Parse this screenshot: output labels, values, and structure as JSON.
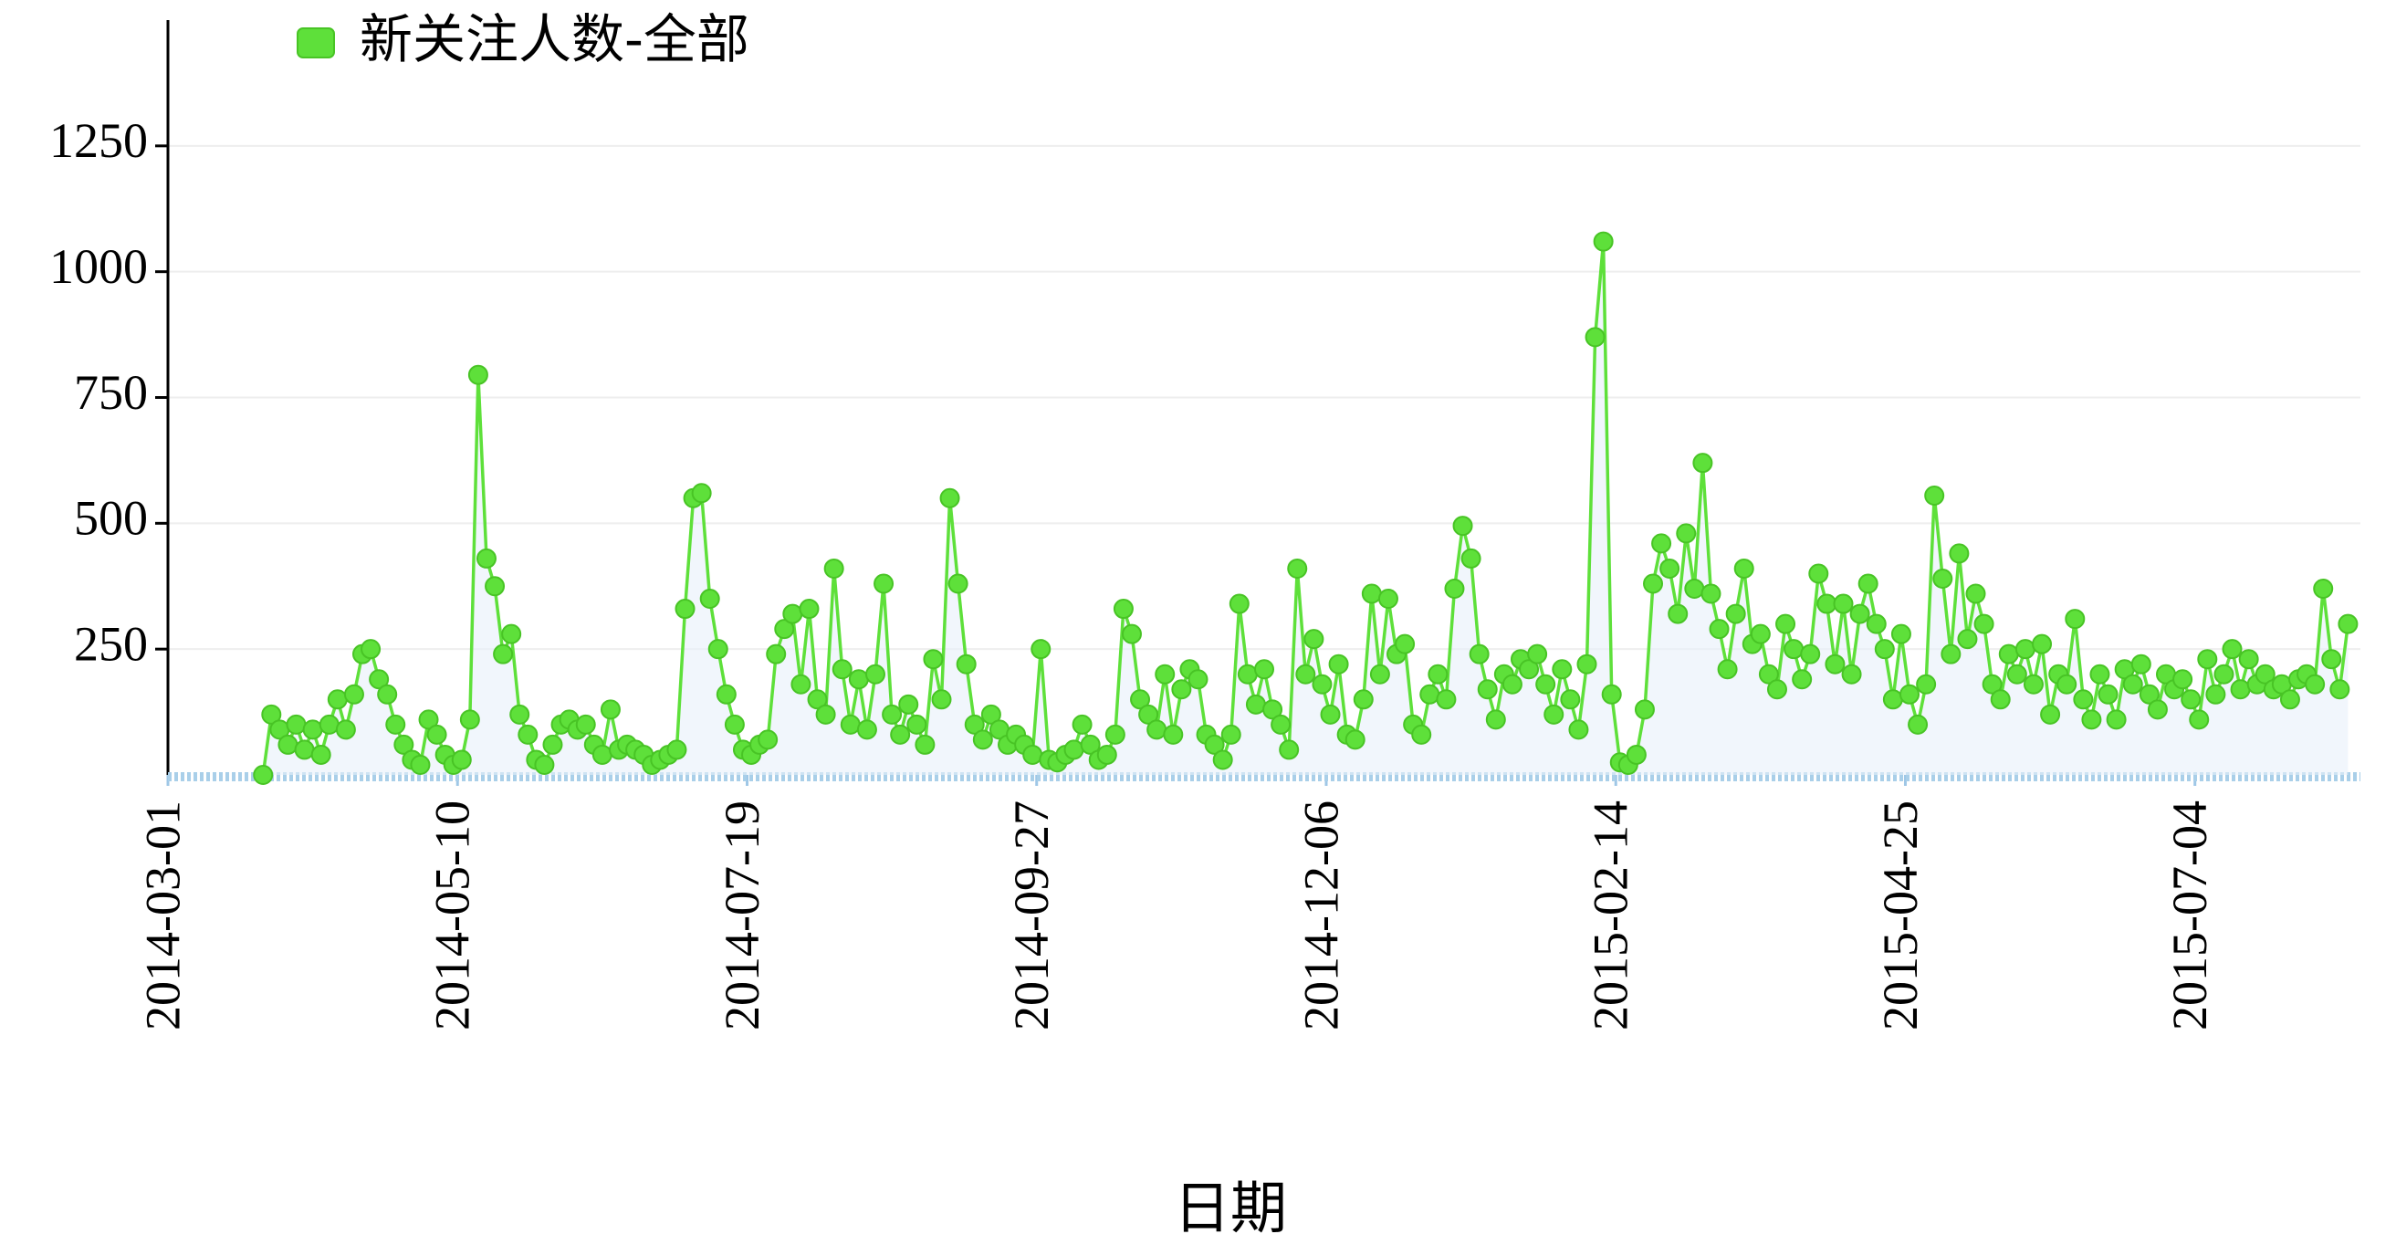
{
  "chart_data": {
    "type": "line",
    "x_label": "日期",
    "x": [
      "2014-03-24",
      "2014-03-26",
      "2014-03-28",
      "2014-03-30",
      "2014-04-01",
      "2014-04-03",
      "2014-04-05",
      "2014-04-07",
      "2014-04-09",
      "2014-04-11",
      "2014-04-13",
      "2014-04-15",
      "2014-04-17",
      "2014-04-19",
      "2014-04-21",
      "2014-04-23",
      "2014-04-25",
      "2014-04-27",
      "2014-04-29",
      "2014-05-01",
      "2014-05-03",
      "2014-05-05",
      "2014-05-07",
      "2014-05-09",
      "2014-05-11",
      "2014-05-13",
      "2014-05-15",
      "2014-05-17",
      "2014-05-19",
      "2014-05-21",
      "2014-05-23",
      "2014-05-25",
      "2014-05-27",
      "2014-05-29",
      "2014-05-31",
      "2014-06-02",
      "2014-06-04",
      "2014-06-06",
      "2014-06-08",
      "2014-06-10",
      "2014-06-12",
      "2014-06-14",
      "2014-06-16",
      "2014-06-18",
      "2014-06-20",
      "2014-06-22",
      "2014-06-24",
      "2014-06-26",
      "2014-06-28",
      "2014-06-30",
      "2014-07-02",
      "2014-07-04",
      "2014-07-06",
      "2014-07-08",
      "2014-07-10",
      "2014-07-12",
      "2014-07-14",
      "2014-07-16",
      "2014-07-18",
      "2014-07-20",
      "2014-07-22",
      "2014-07-24",
      "2014-07-26",
      "2014-07-28",
      "2014-07-30",
      "2014-08-01",
      "2014-08-03",
      "2014-08-05",
      "2014-08-07",
      "2014-08-09",
      "2014-08-11",
      "2014-08-13",
      "2014-08-15",
      "2014-08-17",
      "2014-08-19",
      "2014-08-21",
      "2014-08-23",
      "2014-08-25",
      "2014-08-27",
      "2014-08-29",
      "2014-08-31",
      "2014-09-02",
      "2014-09-04",
      "2014-09-06",
      "2014-09-08",
      "2014-09-10",
      "2014-09-12",
      "2014-09-14",
      "2014-09-16",
      "2014-09-18",
      "2014-09-20",
      "2014-09-22",
      "2014-09-24",
      "2014-09-26",
      "2014-09-28",
      "2014-09-30",
      "2014-10-02",
      "2014-10-04",
      "2014-10-06",
      "2014-10-08",
      "2014-10-10",
      "2014-10-12",
      "2014-10-14",
      "2014-10-16",
      "2014-10-18",
      "2014-10-20",
      "2014-10-22",
      "2014-10-24",
      "2014-10-26",
      "2014-10-28",
      "2014-10-30",
      "2014-11-01",
      "2014-11-03",
      "2014-11-05",
      "2014-11-07",
      "2014-11-09",
      "2014-11-11",
      "2014-11-13",
      "2014-11-15",
      "2014-11-17",
      "2014-11-19",
      "2014-11-21",
      "2014-11-23",
      "2014-11-25",
      "2014-11-27",
      "2014-11-29",
      "2014-12-01",
      "2014-12-03",
      "2014-12-05",
      "2014-12-07",
      "2014-12-09",
      "2014-12-11",
      "2014-12-13",
      "2014-12-15",
      "2014-12-17",
      "2014-12-19",
      "2014-12-21",
      "2014-12-23",
      "2014-12-25",
      "2014-12-27",
      "2014-12-29",
      "2014-12-31",
      "2015-01-02",
      "2015-01-04",
      "2015-01-06",
      "2015-01-08",
      "2015-01-10",
      "2015-01-12",
      "2015-01-14",
      "2015-01-16",
      "2015-01-18",
      "2015-01-20",
      "2015-01-22",
      "2015-01-24",
      "2015-01-26",
      "2015-01-28",
      "2015-01-30",
      "2015-02-01",
      "2015-02-03",
      "2015-02-05",
      "2015-02-07",
      "2015-02-09",
      "2015-02-11",
      "2015-02-13",
      "2015-02-15",
      "2015-02-17",
      "2015-02-19",
      "2015-02-21",
      "2015-02-23",
      "2015-02-25",
      "2015-02-27",
      "2015-03-01",
      "2015-03-03",
      "2015-03-05",
      "2015-03-07",
      "2015-03-09",
      "2015-03-11",
      "2015-03-13",
      "2015-03-15",
      "2015-03-17",
      "2015-03-19",
      "2015-03-21",
      "2015-03-23",
      "2015-03-25",
      "2015-03-27",
      "2015-03-29",
      "2015-03-31",
      "2015-04-02",
      "2015-04-04",
      "2015-04-06",
      "2015-04-08",
      "2015-04-10",
      "2015-04-12",
      "2015-04-14",
      "2015-04-16",
      "2015-04-18",
      "2015-04-20",
      "2015-04-22",
      "2015-04-24",
      "2015-04-26",
      "2015-04-28",
      "2015-04-30",
      "2015-05-02",
      "2015-05-04",
      "2015-05-06",
      "2015-05-08",
      "2015-05-10",
      "2015-05-12",
      "2015-05-14",
      "2015-05-16",
      "2015-05-18",
      "2015-05-20",
      "2015-05-22",
      "2015-05-24",
      "2015-05-26",
      "2015-05-28",
      "2015-05-30",
      "2015-06-01",
      "2015-06-03",
      "2015-06-05",
      "2015-06-07",
      "2015-06-09",
      "2015-06-11",
      "2015-06-13",
      "2015-06-15",
      "2015-06-17",
      "2015-06-19",
      "2015-06-21",
      "2015-06-23",
      "2015-06-25",
      "2015-06-27",
      "2015-06-29",
      "2015-07-01",
      "2015-07-03",
      "2015-07-05",
      "2015-07-07",
      "2015-07-09",
      "2015-07-11",
      "2015-07-13",
      "2015-07-15",
      "2015-07-17",
      "2015-07-19",
      "2015-07-21",
      "2015-07-23",
      "2015-07-25",
      "2015-07-27",
      "2015-07-29",
      "2015-07-31",
      "2015-08-02",
      "2015-08-04",
      "2015-08-06",
      "2015-08-08",
      "2015-08-10"
    ],
    "series": [
      {
        "name": "新关注人数-全部",
        "color": "#5ee03a",
        "values": [
          0,
          120,
          90,
          60,
          100,
          50,
          90,
          40,
          100,
          150,
          90,
          160,
          240,
          250,
          190,
          160,
          100,
          60,
          30,
          20,
          110,
          80,
          40,
          20,
          30,
          110,
          795,
          430,
          375,
          240,
          280,
          120,
          80,
          30,
          20,
          60,
          100,
          110,
          90,
          100,
          60,
          40,
          130,
          50,
          60,
          50,
          40,
          20,
          30,
          40,
          50,
          330,
          550,
          560,
          350,
          250,
          160,
          100,
          50,
          40,
          60,
          70,
          240,
          290,
          320,
          180,
          330,
          150,
          120,
          410,
          210,
          100,
          190,
          90,
          200,
          380,
          120,
          80,
          140,
          100,
          60,
          230,
          150,
          550,
          380,
          220,
          100,
          70,
          120,
          90,
          60,
          80,
          60,
          40,
          250,
          30,
          25,
          40,
          50,
          100,
          60,
          30,
          40,
          80,
          330,
          280,
          150,
          120,
          90,
          200,
          80,
          170,
          210,
          190,
          80,
          60,
          30,
          80,
          340,
          200,
          140,
          210,
          130,
          100,
          50,
          410,
          200,
          270,
          180,
          120,
          220,
          80,
          70,
          150,
          360,
          200,
          350,
          240,
          260,
          100,
          80,
          160,
          200,
          150,
          370,
          495,
          430,
          240,
          170,
          110,
          200,
          180,
          230,
          210,
          240,
          180,
          120,
          210,
          150,
          90,
          220,
          870,
          1060,
          160,
          25,
          20,
          40,
          130,
          380,
          460,
          410,
          320,
          480,
          370,
          620,
          360,
          290,
          210,
          320,
          410,
          260,
          280,
          200,
          170,
          300,
          250,
          190,
          240,
          400,
          340,
          220,
          340,
          200,
          320,
          380,
          300,
          250,
          150,
          280,
          160,
          100,
          180,
          555,
          390,
          240,
          440,
          270,
          360,
          300,
          180,
          150,
          240,
          200,
          250,
          180,
          260,
          120,
          200,
          180,
          310,
          150,
          110,
          200,
          160,
          110,
          210,
          180,
          220,
          160,
          130,
          200,
          170,
          190,
          150,
          110,
          230,
          160,
          200,
          250,
          170,
          230,
          180,
          200,
          170,
          180,
          150,
          190,
          200,
          180,
          370,
          230,
          170,
          300
        ]
      }
    ],
    "xlim": [
      "2014-03-01",
      "2015-08-13"
    ],
    "xticks": [
      "2014-03-01",
      "2014-05-10",
      "2014-07-19",
      "2014-09-27",
      "2014-12-06",
      "2015-02-14",
      "2015-04-25",
      "2015-07-04"
    ],
    "ylim": [
      0,
      1500
    ],
    "yticks": [
      250,
      500,
      750,
      1000,
      1250
    ],
    "grid": true,
    "legend": "top-left"
  }
}
